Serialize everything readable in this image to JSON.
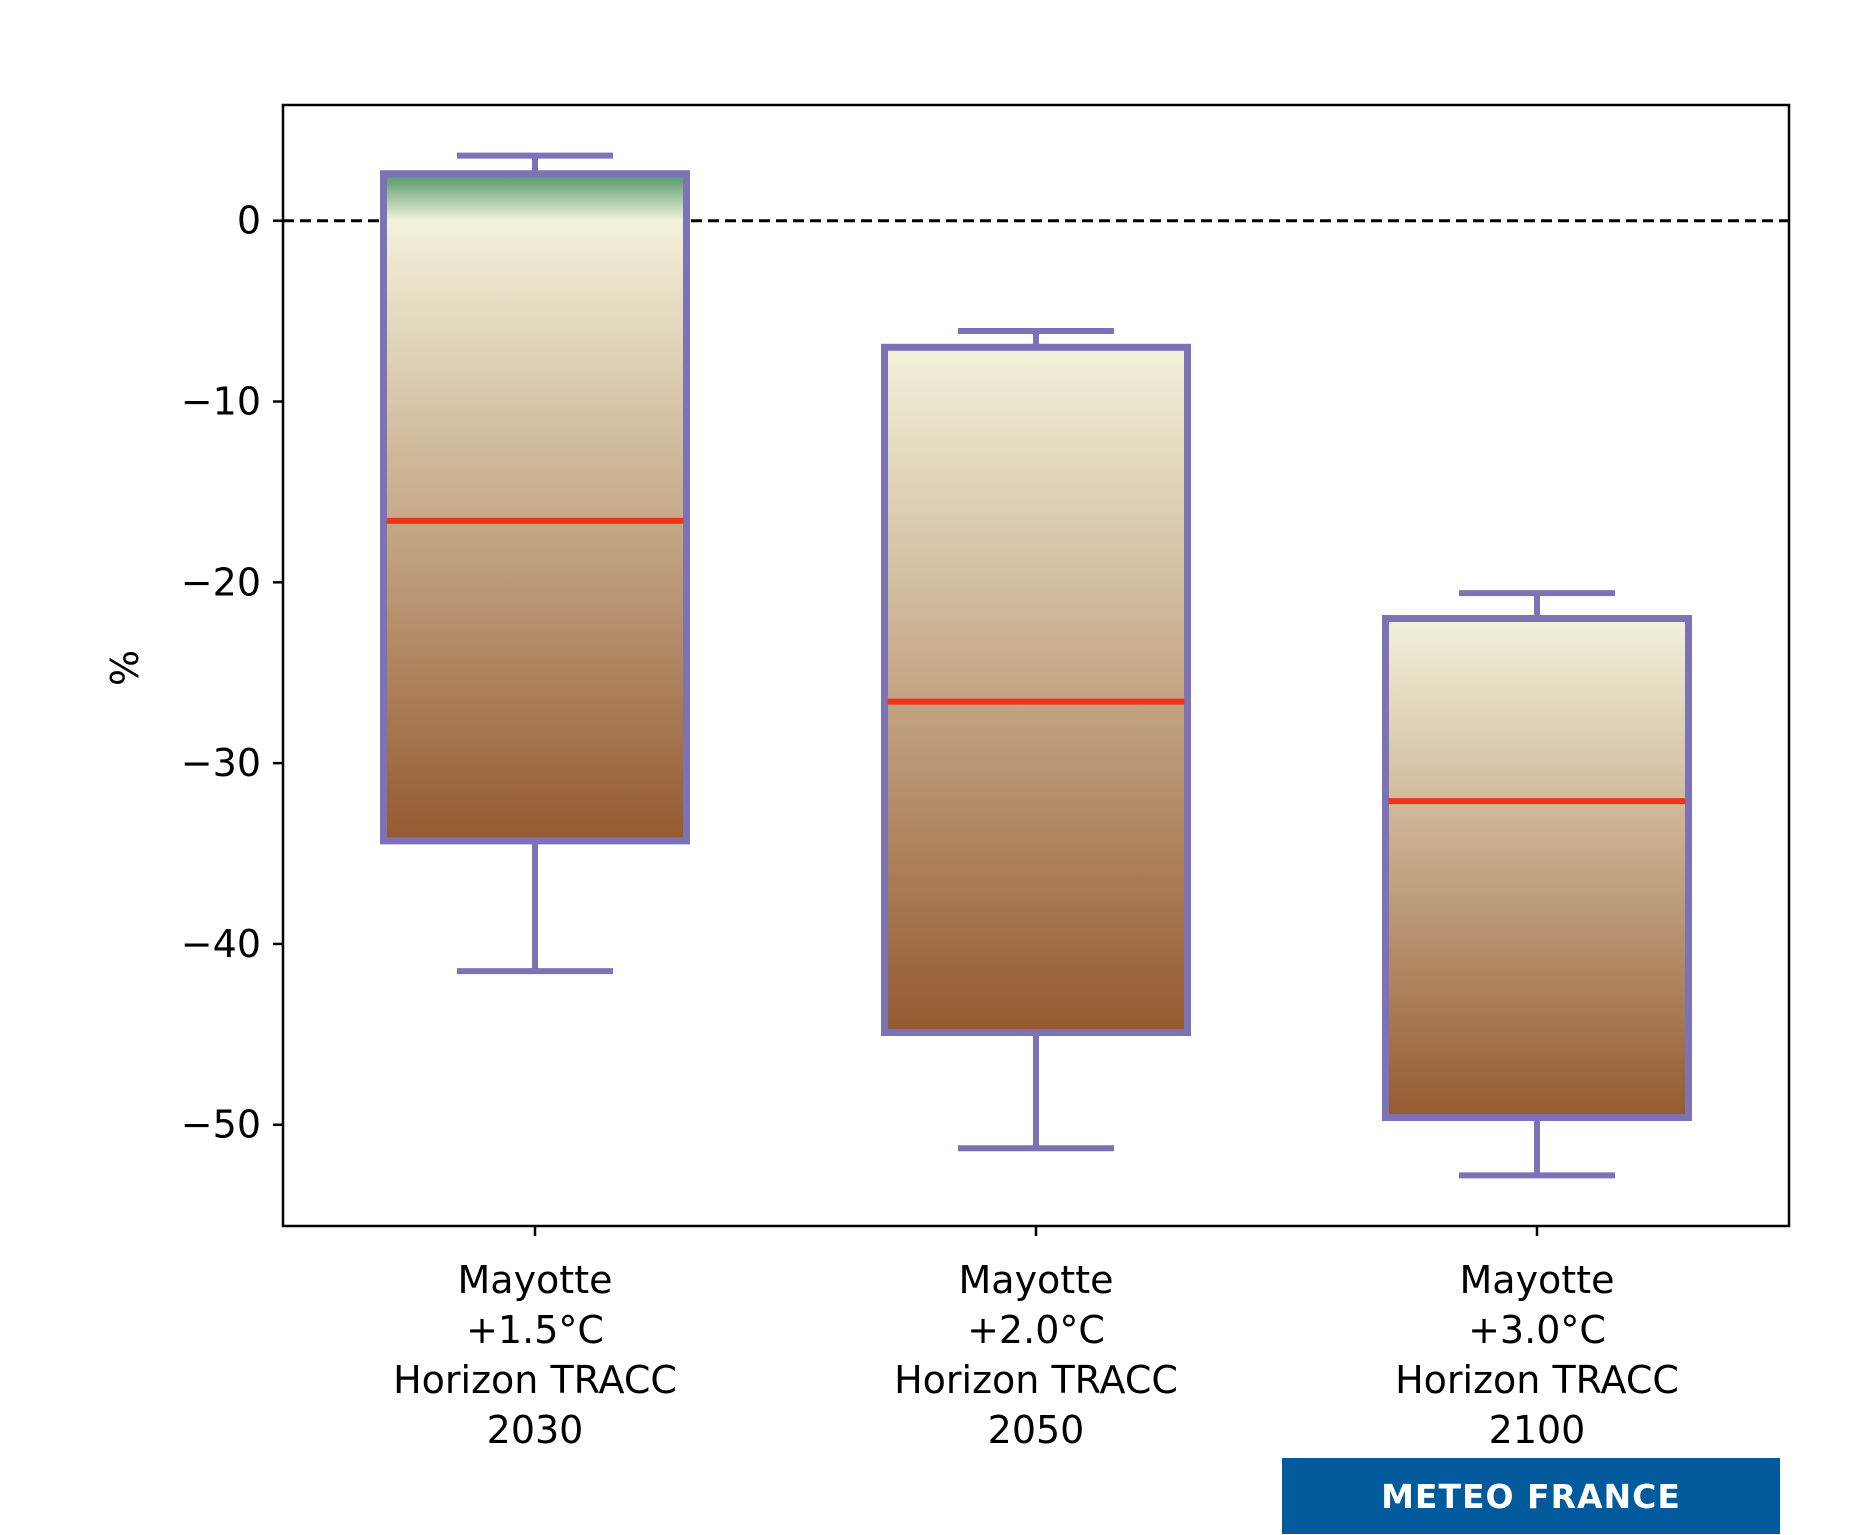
{
  "chart_data": {
    "type": "boxplot",
    "title": "",
    "xlabel": "",
    "ylabel": "%",
    "ylim": [
      -55.6,
      6.4
    ],
    "yticks": [
      0,
      -10,
      -20,
      -30,
      -40,
      -50
    ],
    "ytick_labels": [
      "0",
      "−10",
      "−20",
      "−30",
      "−40",
      "−50"
    ],
    "reference_line": {
      "y": 0,
      "style": "dashed"
    },
    "categories": [
      [
        "Mayotte",
        "+1.5°C",
        "Horizon TRACC",
        "2030"
      ],
      [
        "Mayotte",
        "+2.0°C",
        "Horizon TRACC",
        "2050"
      ],
      [
        "Mayotte",
        "+3.0°C",
        "Horizon TRACC",
        "2100"
      ]
    ],
    "boxes": [
      {
        "whisker_high": 3.6,
        "q3": 2.6,
        "median": -16.6,
        "q1": -34.3,
        "whisker_low": -41.5
      },
      {
        "whisker_high": -6.1,
        "q3": -7.0,
        "median": -26.6,
        "q1": -44.9,
        "whisker_low": -51.3
      },
      {
        "whisker_high": -20.6,
        "q3": -22.0,
        "median": -32.1,
        "q1": -49.6,
        "whisker_low": -52.8
      }
    ],
    "colors": {
      "box_edge": "#7b73b5",
      "median": "#ee3418",
      "gradient_top": "#f2f2da",
      "gradient_bottom": "#955a2f",
      "gradient_positive": "#4f9468"
    }
  },
  "branding": {
    "logo_text": "METEO FRANCE",
    "logo_bg": "#005a9b"
  }
}
